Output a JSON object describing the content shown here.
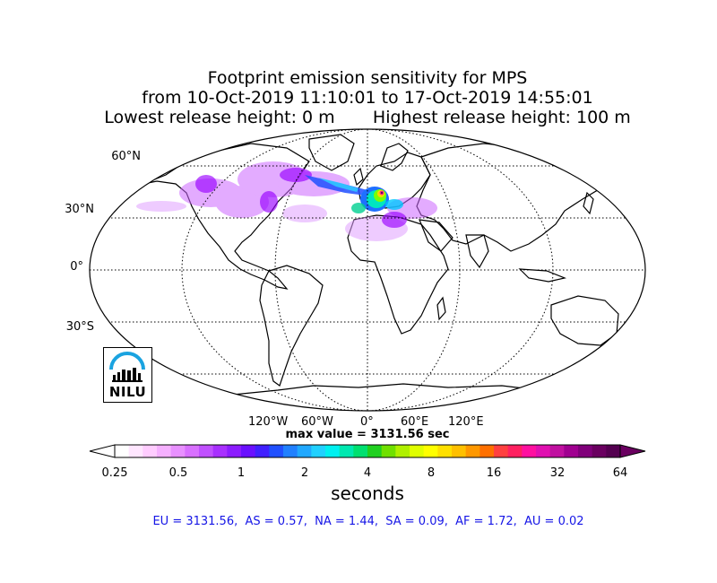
{
  "title": {
    "line1": "Footprint emission sensitivity for MPS",
    "line2": "from 10-Oct-2019 11:10:01 to 17-Oct-2019 14:55:01",
    "line3": "Lowest release height: 0 m       Highest release height: 100 m"
  },
  "map": {
    "projection": "robinson",
    "lat_labels": [
      "60°N",
      "30°N",
      "0°",
      "30°S"
    ],
    "lon_labels": [
      "120°W",
      "60°W",
      "0°",
      "60°E",
      "120°E"
    ],
    "gridlines": "dotted",
    "max_value_text": "max value = 3131.56 sec",
    "plume_region": "North Atlantic / Europe / Mediterranean"
  },
  "colorbar": {
    "scale": "log",
    "ticks": [
      "0.25",
      "0.5",
      "1",
      "2",
      "4",
      "8",
      "16",
      "32",
      "64"
    ],
    "unit_label": "seconds"
  },
  "logo": {
    "text": "NILU"
  },
  "regions_text": "EU = 3131.56,  AS = 0.57,  NA = 1.44,  SA = 0.09,  AF = 1.72,  AU = 0.02",
  "colors": {
    "regions_text": "#1515e6",
    "ocean": "#ffffff",
    "land_outline": "#000000"
  }
}
